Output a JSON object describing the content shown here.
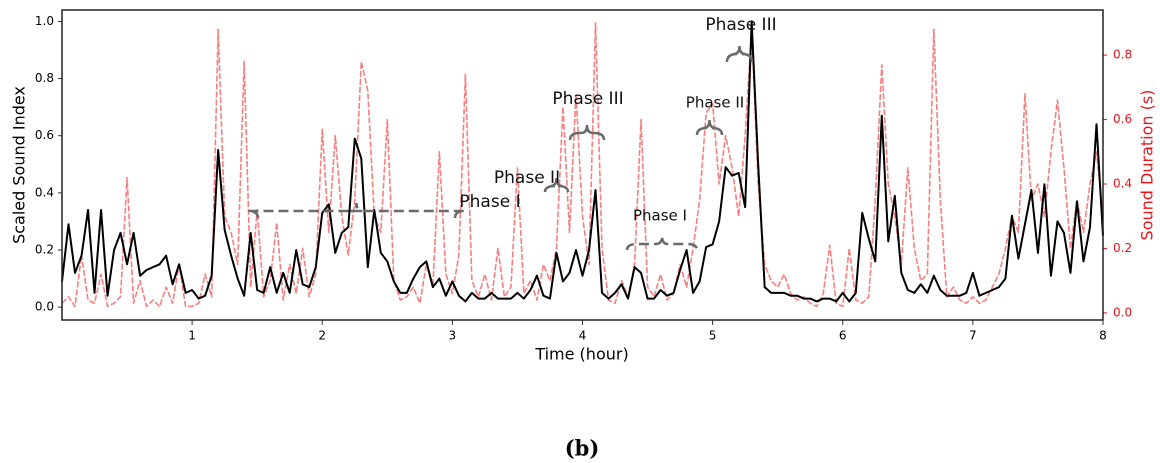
{
  "chart_data": {
    "type": "line",
    "xlabel": "Time (hour)",
    "ylabel": "Scaled Sound Index",
    "y2label": "Sound Duration (s)",
    "xlim": [
      0,
      8
    ],
    "xticks": [
      1,
      2,
      3,
      4,
      5,
      6,
      7,
      8
    ],
    "ylim": [
      -0.045,
      1.04
    ],
    "yticks": [
      {
        "value": 0,
        "label": "0.0"
      },
      {
        "value": 0.2,
        "label": "0.2"
      },
      {
        "value": 0.4,
        "label": "0.4"
      },
      {
        "value": 0.6,
        "label": "0.6"
      },
      {
        "value": 0.8,
        "label": "0.8"
      },
      {
        "value": 1,
        "label": "1.0"
      }
    ],
    "y2lim": [
      -0.022,
      0.94
    ],
    "y2ticks": [
      {
        "value": 0,
        "label": "0.0"
      },
      {
        "value": 0.2,
        "label": "0.2"
      },
      {
        "value": 0.4,
        "label": "0.4"
      },
      {
        "value": 0.6,
        "label": "0.6"
      },
      {
        "value": 0.8,
        "label": "0.8"
      }
    ],
    "y2color": "#e8141a",
    "x": [
      0,
      0.05,
      0.1,
      0.15,
      0.2,
      0.25,
      0.3,
      0.35,
      0.4,
      0.45,
      0.5,
      0.55,
      0.6,
      0.65,
      0.7,
      0.75,
      0.8,
      0.85,
      0.9,
      0.95,
      1,
      1.05,
      1.1,
      1.15,
      1.2,
      1.25,
      1.3,
      1.35,
      1.4,
      1.45,
      1.5,
      1.55,
      1.6,
      1.65,
      1.7,
      1.75,
      1.8,
      1.85,
      1.9,
      1.95,
      2,
      2.05,
      2.1,
      2.15,
      2.2,
      2.25,
      2.3,
      2.35,
      2.4,
      2.45,
      2.5,
      2.55,
      2.6,
      2.65,
      2.7,
      2.75,
      2.8,
      2.85,
      2.9,
      2.95,
      3,
      3.05,
      3.1,
      3.15,
      3.2,
      3.25,
      3.3,
      3.35,
      3.4,
      3.45,
      3.5,
      3.55,
      3.6,
      3.65,
      3.7,
      3.75,
      3.8,
      3.85,
      3.9,
      3.95,
      4,
      4.05,
      4.1,
      4.15,
      4.2,
      4.25,
      4.3,
      4.35,
      4.4,
      4.45,
      4.5,
      4.55,
      4.6,
      4.65,
      4.7,
      4.75,
      4.8,
      4.85,
      4.9,
      4.95,
      5,
      5.05,
      5.1,
      5.15,
      5.2,
      5.25,
      5.3,
      5.35,
      5.4,
      5.45,
      5.5,
      5.55,
      5.6,
      5.65,
      5.7,
      5.75,
      5.8,
      5.85,
      5.9,
      5.95,
      6,
      6.05,
      6.1,
      6.15,
      6.2,
      6.25,
      6.3,
      6.35,
      6.4,
      6.45,
      6.5,
      6.55,
      6.6,
      6.65,
      6.7,
      6.75,
      6.8,
      6.85,
      6.9,
      6.95,
      7,
      7.05,
      7.1,
      7.15,
      7.2,
      7.25,
      7.3,
      7.35,
      7.4,
      7.45,
      7.5,
      7.55,
      7.6,
      7.65,
      7.7,
      7.75,
      7.8,
      7.85,
      7.9,
      7.95,
      8
    ],
    "series": [
      {
        "color": "#f77f7f",
        "axis": "y2",
        "values": [
          0.03,
          0.05,
          0.02,
          0.18,
          0.04,
          0.03,
          0.12,
          0.02,
          0.03,
          0.05,
          0.42,
          0.03,
          0.1,
          0.02,
          0.04,
          0.02,
          0.08,
          0.03,
          0.15,
          0.02,
          0.02,
          0.03,
          0.12,
          0.05,
          0.88,
          0.3,
          0.25,
          0.15,
          0.78,
          0.08,
          0.32,
          0.05,
          0.1,
          0.28,
          0.04,
          0.15,
          0.06,
          0.2,
          0.05,
          0.12,
          0.57,
          0.25,
          0.55,
          0.3,
          0.18,
          0.35,
          0.78,
          0.69,
          0.3,
          0.25,
          0.6,
          0.1,
          0.04,
          0.05,
          0.08,
          0.03,
          0.15,
          0.08,
          0.5,
          0.12,
          0.06,
          0.18,
          0.74,
          0.1,
          0.05,
          0.12,
          0.04,
          0.2,
          0.05,
          0.08,
          0.45,
          0.06,
          0.1,
          0.04,
          0.15,
          0.1,
          0.2,
          0.64,
          0.25,
          0.68,
          0.3,
          0.15,
          0.9,
          0.2,
          0.04,
          0.03,
          0.1,
          0.05,
          0.15,
          0.6,
          0.08,
          0.05,
          0.12,
          0.04,
          0.06,
          0.15,
          0.08,
          0.2,
          0.35,
          0.62,
          0.65,
          0.4,
          0.55,
          0.45,
          0.3,
          0.55,
          0.88,
          0.4,
          0.15,
          0.1,
          0.08,
          0.12,
          0.06,
          0.04,
          0.05,
          0.03,
          0.02,
          0.06,
          0.21,
          0.03,
          0.02,
          0.2,
          0.04,
          0.03,
          0.05,
          0.35,
          0.77,
          0.4,
          0.3,
          0.15,
          0.45,
          0.2,
          0.1,
          0.12,
          0.88,
          0.35,
          0.05,
          0.08,
          0.04,
          0.03,
          0.05,
          0.03,
          0.04,
          0.08,
          0.12,
          0.2,
          0.3,
          0.25,
          0.68,
          0.35,
          0.4,
          0.3,
          0.5,
          0.66,
          0.45,
          0.2,
          0.35,
          0.25,
          0.4,
          0.5,
          0.3
        ]
      },
      {
        "color": "#000000",
        "values": [
          0.09,
          0.29,
          0.12,
          0.18,
          0.34,
          0.05,
          0.34,
          0.04,
          0.2,
          0.26,
          0.15,
          0.26,
          0.11,
          0.13,
          0.14,
          0.15,
          0.18,
          0.08,
          0.15,
          0.05,
          0.06,
          0.03,
          0.04,
          0.11,
          0.55,
          0.27,
          0.18,
          0.1,
          0.04,
          0.26,
          0.06,
          0.05,
          0.14,
          0.05,
          0.12,
          0.05,
          0.2,
          0.08,
          0.07,
          0.14,
          0.33,
          0.36,
          0.19,
          0.26,
          0.28,
          0.59,
          0.52,
          0.14,
          0.34,
          0.19,
          0.16,
          0.09,
          0.05,
          0.05,
          0.1,
          0.14,
          0.16,
          0.07,
          0.1,
          0.04,
          0.09,
          0.04,
          0.02,
          0.05,
          0.03,
          0.03,
          0.05,
          0.03,
          0.03,
          0.03,
          0.05,
          0.03,
          0.06,
          0.11,
          0.04,
          0.03,
          0.19,
          0.09,
          0.12,
          0.2,
          0.11,
          0.2,
          0.41,
          0.05,
          0.03,
          0.05,
          0.08,
          0.03,
          0.14,
          0.12,
          0.03,
          0.03,
          0.06,
          0.04,
          0.05,
          0.13,
          0.2,
          0.05,
          0.09,
          0.21,
          0.22,
          0.3,
          0.49,
          0.46,
          0.47,
          0.35,
          1.0,
          0.5,
          0.07,
          0.05,
          0.05,
          0.05,
          0.04,
          0.04,
          0.03,
          0.03,
          0.02,
          0.03,
          0.03,
          0.02,
          0.05,
          0.02,
          0.05,
          0.33,
          0.24,
          0.16,
          0.67,
          0.23,
          0.39,
          0.12,
          0.06,
          0.05,
          0.08,
          0.05,
          0.11,
          0.06,
          0.04,
          0.04,
          0.04,
          0.05,
          0.12,
          0.04,
          0.05,
          0.06,
          0.07,
          0.1,
          0.32,
          0.17,
          0.29,
          0.41,
          0.19,
          0.43,
          0.11,
          0.3,
          0.26,
          0.12,
          0.37,
          0.16,
          0.28,
          0.64,
          0.25
        ]
      }
    ],
    "annotations": [
      "Phase I",
      "Phase II",
      "Phase III",
      "Phase I",
      "Phase II",
      "Phase III"
    ]
  },
  "caption": "(b)"
}
